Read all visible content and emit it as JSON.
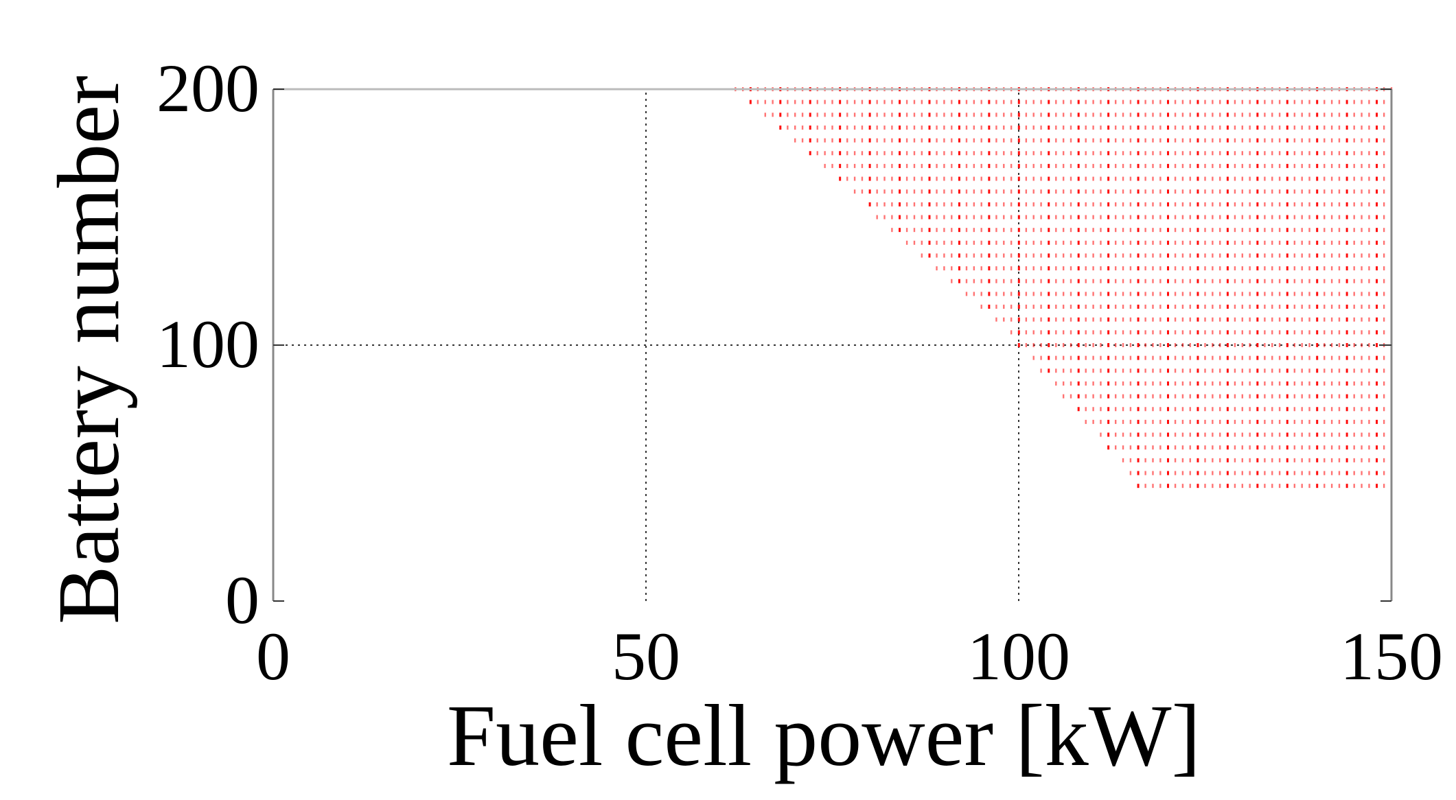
{
  "chart_data": {
    "type": "scatter",
    "xlabel": "Fuel cell power [kW]",
    "ylabel": "Battery number",
    "xlim": [
      0,
      150
    ],
    "ylim": [
      0,
      200
    ],
    "xticks": [
      0,
      50,
      100,
      150
    ],
    "yticks": [
      0,
      100,
      200
    ],
    "xtick_labels": [
      "0",
      "50",
      "100",
      "150"
    ],
    "ytick_labels": [
      "0",
      "100",
      "200"
    ],
    "grid": true,
    "grid_style": "dotted",
    "marker_color": "#ff0000",
    "region": {
      "description_points": [
        {
          "x": 62,
          "y": 200
        },
        {
          "x": 100,
          "y": 100
        },
        {
          "x": 116,
          "y": 45
        },
        {
          "x": 150,
          "y": 45
        },
        {
          "x": 150,
          "y": 200
        }
      ],
      "x_step": 1,
      "y_step": 5,
      "y_min": 45,
      "y_max": 200,
      "x_max": 150
    }
  }
}
